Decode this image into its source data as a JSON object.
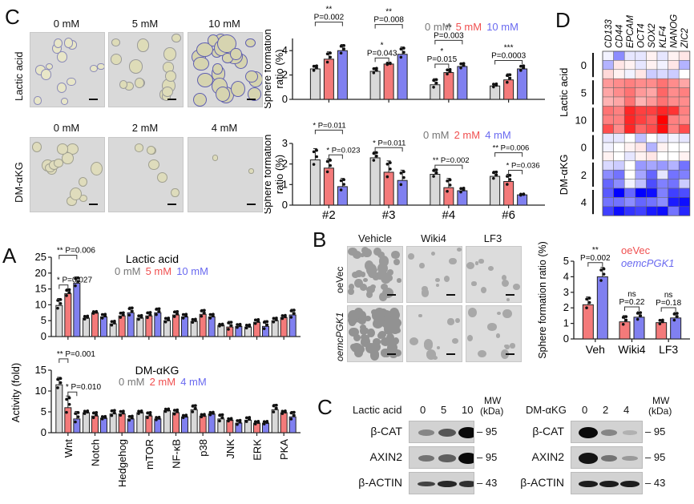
{
  "panels": {
    "C_top": {
      "letter": "C",
      "micrographs": {
        "lactic": {
          "row_label": "Lactic acid",
          "cols": [
            "0 mM",
            "5 mM",
            "10 mM"
          ]
        },
        "dmakg": {
          "row_label": "DM-αKG",
          "cols": [
            "0 mM",
            "2 mM",
            "4 mM"
          ]
        }
      }
    },
    "D": {
      "letter": "D"
    },
    "A": {
      "letter": "A"
    },
    "B": {
      "letter": "B",
      "micrographs": {
        "cols": [
          "Vehicle",
          "Wiki4",
          "LF3"
        ],
        "rows": [
          "oeVec",
          "oemcPGK1"
        ]
      }
    },
    "C_blot": {
      "letter": "C",
      "lactic": {
        "treatment": "Lactic acid",
        "lanes": [
          "0",
          "5",
          "10"
        ],
        "mw_header": [
          "MW",
          "(kDa)"
        ],
        "proteins": [
          {
            "name": "β-CAT",
            "mw": "95",
            "intensity": [
              0.35,
              0.6,
              1.0
            ]
          },
          {
            "name": "AXIN2",
            "mw": "95",
            "intensity": [
              0.45,
              0.55,
              1.0
            ]
          },
          {
            "name": "β-ACTIN",
            "mw": "43",
            "intensity": [
              0.7,
              0.85,
              0.8
            ]
          }
        ]
      },
      "dmakg": {
        "treatment": "DM-αKG",
        "lanes": [
          "0",
          "2",
          "4"
        ],
        "mw_header": [
          "MW",
          "(kDa)"
        ],
        "proteins": [
          {
            "name": "β-CAT",
            "mw": "95",
            "intensity": [
              1.0,
              0.35,
              0.12
            ]
          },
          {
            "name": "AXIN2",
            "mw": "95",
            "intensity": [
              0.95,
              0.45,
              0.25
            ]
          },
          {
            "name": "β-ACTIN",
            "mw": "43",
            "intensity": [
              0.9,
              0.9,
              0.9
            ]
          }
        ]
      }
    }
  },
  "colors": {
    "gray": "#d9d9d9",
    "red": "#f47a7a",
    "blue": "#8080f0",
    "gray_text": "#777777",
    "red_text": "#f05050",
    "blue_text": "#6a6af0"
  },
  "chart_data": [
    {
      "id": "sphere_lactic",
      "type": "bar",
      "ylabel": "Sphere formation ratio (%)",
      "ylim": [
        0,
        5
      ],
      "yticks": [
        0,
        2,
        4
      ],
      "categories": [
        "#2",
        "#3",
        "#4",
        "#6"
      ],
      "show_xlabels": false,
      "legend": [
        "0 mM",
        "5 mM",
        "10 mM"
      ],
      "legend_position": "top-right",
      "series": [
        {
          "name": "0 mM",
          "values": [
            2.5,
            2.3,
            1.2,
            1.1
          ],
          "err": [
            0.3,
            0.3,
            0.5,
            0.2
          ]
        },
        {
          "name": "5 mM",
          "values": [
            3.3,
            2.9,
            2.2,
            1.6
          ],
          "err": [
            0.6,
            0.1,
            0.3,
            0.5
          ]
        },
        {
          "name": "10 mM",
          "values": [
            4.0,
            3.7,
            2.7,
            2.5
          ],
          "err": [
            0.5,
            0.6,
            0.3,
            0.3
          ]
        }
      ],
      "annotations": [
        {
          "group": 0,
          "from": 0,
          "to": 2,
          "stars": "**",
          "p": "P=0.002",
          "level": 1
        },
        {
          "group": 1,
          "from": 0,
          "to": 2,
          "stars": "**",
          "p": "P=0.008",
          "level": 1
        },
        {
          "group": 1,
          "from": 0,
          "to": 1,
          "stars": "*",
          "p": "P=0.043",
          "level": 0
        },
        {
          "group": 2,
          "from": 0,
          "to": 2,
          "stars": "**",
          "p": "P=0.003",
          "level": 1
        },
        {
          "group": 2,
          "from": 0,
          "to": 1,
          "stars": "*",
          "p": "P=0.015",
          "level": 0
        },
        {
          "group": 3,
          "from": 0,
          "to": 2,
          "stars": "***",
          "p": "P=0.0003",
          "level": 0
        }
      ]
    },
    {
      "id": "sphere_dmakg",
      "type": "bar",
      "ylabel": "Sphere formation ratio (%)",
      "ylim": [
        0,
        3
      ],
      "yticks": [
        0,
        1,
        2,
        3
      ],
      "categories": [
        "#2",
        "#3",
        "#4",
        "#6"
      ],
      "show_xlabels": true,
      "legend": [
        "0 mM",
        "2 mM",
        "4 mM"
      ],
      "legend_position": "top-right",
      "series": [
        {
          "name": "0 mM",
          "values": [
            2.2,
            2.3,
            1.5,
            1.4
          ],
          "err": [
            0.55,
            0.3,
            0.25,
            0.25
          ]
        },
        {
          "name": "2 mM",
          "values": [
            1.8,
            1.6,
            0.85,
            1.15
          ],
          "err": [
            0.45,
            0.55,
            0.45,
            0.35
          ]
        },
        {
          "name": "4 mM",
          "values": [
            0.9,
            1.2,
            0.7,
            0.5
          ],
          "err": [
            0.4,
            0.5,
            0.15,
            0.05
          ]
        }
      ],
      "annotations": [
        {
          "group": 0,
          "from": 0,
          "to": 2,
          "stars": "*",
          "p": "P=0.011",
          "level": 1
        },
        {
          "group": 0,
          "from": 1,
          "to": 2,
          "stars": "*",
          "p": "P=0.023",
          "level": 0
        },
        {
          "group": 1,
          "from": 0,
          "to": 2,
          "stars": "*",
          "p": "P=0.011",
          "level": 0
        },
        {
          "group": 2,
          "from": 0,
          "to": 2,
          "stars": "**",
          "p": "P=0.002",
          "level": 0
        },
        {
          "group": 3,
          "from": 0,
          "to": 2,
          "stars": "**",
          "p": "P=0.006",
          "level": 1
        },
        {
          "group": 3,
          "from": 1,
          "to": 2,
          "stars": "*",
          "p": "P=0.036",
          "level": 0
        }
      ]
    },
    {
      "id": "heatmap",
      "type": "heatmap",
      "columns": [
        "CD133",
        "CD44",
        "EPCAM",
        "OCT4",
        "SOX2",
        "KLF4",
        "NANOG",
        "ZIC2"
      ],
      "row_groups": [
        {
          "treatment": "Lactic acid",
          "dose": "0",
          "rows": 3
        },
        {
          "treatment": "Lactic acid",
          "dose": "5",
          "rows": 3
        },
        {
          "treatment": "Lactic acid",
          "dose": "10",
          "rows": 3
        },
        {
          "treatment": "DM-αKG",
          "dose": "0",
          "rows": 3
        },
        {
          "treatment": "DM-αKG",
          "dose": "2",
          "rows": 3
        },
        {
          "treatment": "DM-αKG",
          "dose": "4",
          "rows": 3
        }
      ],
      "values": [
        [
          -0.05,
          -0.45,
          -0.1,
          -0.1,
          0.05,
          -0.1,
          0.05,
          0.1
        ],
        [
          -0.3,
          0.1,
          0.05,
          -0.1,
          0.05,
          -0.05,
          0.1,
          -0.3
        ],
        [
          0.15,
          0.05,
          -0.05,
          0.1,
          -0.2,
          -0.15,
          -0.2,
          0.0
        ],
        [
          0.4,
          0.45,
          0.5,
          0.45,
          0.45,
          0.55,
          0.45,
          0.35
        ],
        [
          0.35,
          0.45,
          0.55,
          0.4,
          0.35,
          0.6,
          0.45,
          0.5
        ],
        [
          0.3,
          0.35,
          0.55,
          0.3,
          0.4,
          0.55,
          0.45,
          0.45
        ],
        [
          0.55,
          0.5,
          0.85,
          0.75,
          0.75,
          0.85,
          0.8,
          0.5
        ],
        [
          0.5,
          0.5,
          0.85,
          0.75,
          0.65,
          1.0,
          0.5,
          0.45
        ],
        [
          0.7,
          0.45,
          0.85,
          0.6,
          0.7,
          0.95,
          0.5,
          0.7
        ],
        [
          -0.1,
          -0.1,
          0.0,
          -0.25,
          0.0,
          -0.1,
          -0.05,
          -0.1
        ],
        [
          -0.05,
          0.0,
          0.05,
          0.1,
          -0.3,
          0.05,
          0.0,
          0.0
        ],
        [
          0.05,
          0.0,
          -0.1,
          0.05,
          0.1,
          0.0,
          0.0,
          0.05
        ],
        [
          -0.15,
          -0.2,
          0.0,
          -0.4,
          -0.35,
          -0.4,
          -0.3,
          -0.55
        ],
        [
          -0.45,
          -0.55,
          0.0,
          -0.35,
          -0.6,
          -0.1,
          -0.55,
          -0.5
        ],
        [
          -0.6,
          -0.45,
          -0.05,
          -0.25,
          -0.7,
          -0.5,
          -0.55,
          -0.2
        ],
        [
          -0.65,
          -1.0,
          -0.6,
          -1.0,
          -0.95,
          -0.5,
          -0.75,
          -0.7
        ],
        [
          -0.55,
          -0.55,
          -0.45,
          -0.6,
          -0.55,
          -0.45,
          -0.9,
          -0.95
        ],
        [
          -0.75,
          -0.95,
          -0.8,
          -0.75,
          -0.9,
          -0.95,
          -0.55,
          -0.85
        ]
      ]
    },
    {
      "id": "activity_lactic",
      "type": "bar",
      "title": "Lactic acid",
      "ylabel": "Activity (fold)",
      "ylim": [
        0,
        25
      ],
      "yticks": [
        0,
        5,
        10,
        15,
        20,
        25
      ],
      "categories": [
        "Wnt",
        "Notch",
        "Hedgehog",
        "mTOR",
        "NF-κB",
        "p38",
        "JNK",
        "ERK",
        "PKA"
      ],
      "show_xlabels": false,
      "legend": [
        "0 mM",
        "5 mM",
        "10 mM"
      ],
      "series": [
        {
          "name": "0 mM",
          "values": [
            9.8,
            5.8,
            4.0,
            5.8,
            5.0,
            4.8,
            3.5,
            3.0,
            5.0
          ],
          "err": [
            2.2,
            0.8,
            1.0,
            1.0,
            1.0,
            0.8,
            0.5,
            0.8,
            1.0
          ]
        },
        {
          "name": "5 mM",
          "values": [
            13.5,
            7.5,
            6.5,
            6.5,
            6.8,
            7.0,
            3.0,
            4.5,
            6.0
          ],
          "err": [
            1.5,
            0.5,
            1.2,
            1.3,
            1.3,
            1.5,
            1.8,
            1.0,
            0.8
          ]
        },
        {
          "name": "10 mM",
          "values": [
            16.8,
            6.2,
            7.5,
            7.5,
            6.2,
            6.2,
            3.2,
            3.2,
            6.8
          ],
          "err": [
            2.0,
            1.0,
            1.8,
            1.5,
            1.0,
            1.0,
            0.8,
            1.8,
            1.8
          ]
        }
      ],
      "annotations": [
        {
          "group": 0,
          "from": 0,
          "to": 2,
          "stars": "**",
          "p": "P=0.006",
          "level": 1
        },
        {
          "group": 0,
          "from": 0,
          "to": 1,
          "stars": "*",
          "p": "P=0.027",
          "level": 0
        }
      ]
    },
    {
      "id": "activity_dmakg",
      "type": "bar",
      "title": "DM-αKG",
      "ylabel": "Activity (fold)",
      "ylim": [
        0,
        15
      ],
      "yticks": [
        0,
        5,
        10,
        15
      ],
      "categories": [
        "Wnt",
        "Notch",
        "Hedgehog",
        "mTOR",
        "NF-κB",
        "p38",
        "JNK",
        "ERK",
        "PKA"
      ],
      "show_xlabels": true,
      "legend": [
        "0 mM",
        "2 mM",
        "4 mM"
      ],
      "series": [
        {
          "name": "0 mM",
          "values": [
            11.5,
            4.8,
            4.5,
            4.8,
            5.3,
            5.5,
            3.3,
            3.0,
            5.5
          ],
          "err": [
            1.8,
            0.5,
            1.0,
            0.5,
            0.5,
            1.2,
            1.2,
            0.8,
            1.3
          ]
        },
        {
          "name": "2 mM",
          "values": [
            6.0,
            4.0,
            4.5,
            4.0,
            4.8,
            4.0,
            3.0,
            2.3,
            4.8
          ],
          "err": [
            2.8,
            1.0,
            0.8,
            1.0,
            0.8,
            0.5,
            0.5,
            0.5,
            0.5
          ]
        },
        {
          "name": "4 mM",
          "values": [
            3.3,
            3.5,
            3.3,
            3.3,
            3.8,
            4.5,
            2.3,
            2.3,
            3.8
          ],
          "err": [
            1.8,
            0.5,
            0.8,
            0.5,
            0.5,
            0.5,
            0.8,
            0.5,
            1.3
          ]
        }
      ],
      "annotations": [
        {
          "group": 0,
          "from": 0,
          "to": 1,
          "stars": "**",
          "p": "P=0.001",
          "level": 1
        },
        {
          "group": 0,
          "from": 1,
          "to": 2,
          "stars": "*",
          "p": "P=0.010",
          "level": 0
        }
      ]
    },
    {
      "id": "sphere_pgk1",
      "type": "bar",
      "ylabel": "Sphere formation ratio (%)",
      "ylim": [
        0,
        5
      ],
      "yticks": [
        0,
        1,
        2,
        3,
        4,
        5
      ],
      "categories": [
        "Veh",
        "Wiki4",
        "LF3"
      ],
      "show_xlabels": true,
      "legend": [
        "oeVec",
        "oemcPGK1"
      ],
      "series": [
        {
          "name": "oeVec",
          "values": [
            2.2,
            1.1,
            1.05
          ],
          "err": [
            0.5,
            0.4,
            0.2
          ]
        },
        {
          "name": "oemcPGK1",
          "values": [
            4.0,
            1.4,
            1.35
          ],
          "err": [
            0.6,
            0.35,
            0.35
          ]
        }
      ],
      "annotations": [
        {
          "group": 0,
          "from": 0,
          "to": 1,
          "stars": "**",
          "p": "P=0.002",
          "level": 0
        },
        {
          "group": 1,
          "from": 0,
          "to": 1,
          "stars": "ns",
          "p": "P=0.22",
          "level": 0
        },
        {
          "group": 2,
          "from": 0,
          "to": 1,
          "stars": "ns",
          "p": "P=0.18",
          "level": 0
        }
      ]
    }
  ]
}
